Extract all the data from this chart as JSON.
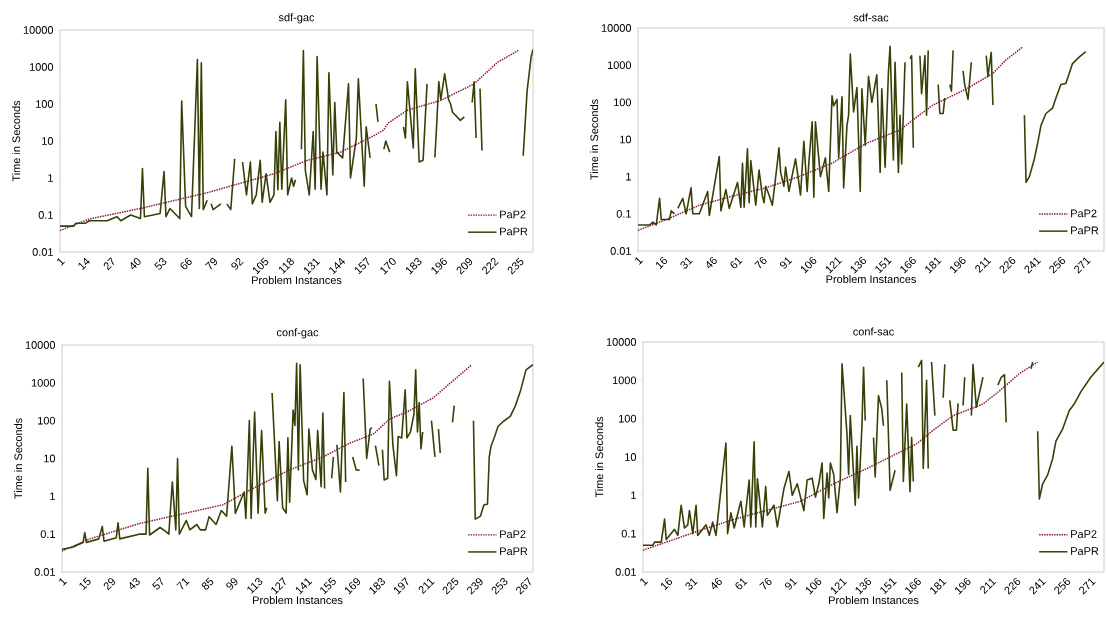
{
  "chart_data": [
    {
      "type": "line",
      "title": "sdf-gac",
      "xlabel": "Problem Instances",
      "ylabel": "Time in Seconds",
      "log": "y",
      "legend": "bottom right",
      "xlim": [
        1,
        242
      ],
      "xticks": [
        1,
        14,
        27,
        40,
        53,
        66,
        79,
        92,
        105,
        118,
        131,
        144,
        157,
        170,
        183,
        196,
        209,
        222,
        235
      ],
      "ylim": [
        0.01,
        10000
      ],
      "yticks": [
        0.01,
        0.1,
        1,
        10,
        100,
        1000,
        10000
      ],
      "series": [
        {
          "name": "PaP2",
          "color": "#8b1a3c",
          "line_style": "dotted",
          "x": [
            1,
            16,
            42,
            76,
            110,
            127,
            144,
            161,
            166,
            168,
            178,
            195,
            212,
            224,
            235
          ],
          "values": [
            0.038,
            0.078,
            0.15,
            0.4,
            1.3,
            3,
            5,
            14,
            20,
            30,
            68,
            125,
            350,
            1350,
            2900
          ]
        },
        {
          "name": "PaPR",
          "color": "#384008",
          "line_style": "solid",
          "x": [
            1,
            8,
            9,
            14,
            16,
            25,
            30,
            32,
            37,
            42,
            43,
            44,
            52,
            54,
            55,
            57,
            62,
            63,
            65,
            68,
            71,
            72,
            73,
            74,
            76,
            77,
            78,
            79,
            83,
            85,
            86,
            88,
            90,
            92,
            94,
            96,
            98,
            99,
            101,
            103,
            104,
            106,
            108,
            110,
            111,
            112,
            113,
            114,
            116,
            117,
            119,
            120,
            121,
            122,
            124,
            125,
            126,
            128,
            130,
            131,
            132,
            134,
            135,
            137,
            138,
            140,
            141,
            142,
            145,
            148,
            149,
            152,
            153,
            156,
            157,
            159,
            160,
            162,
            163,
            164,
            166,
            167,
            169,
            172,
            176,
            177,
            178,
            181,
            182,
            184,
            186,
            188,
            190,
            192,
            193,
            194,
            195,
            197,
            199,
            200,
            201,
            205,
            207,
            209,
            211,
            212,
            213,
            214,
            215,
            216,
            220,
            237,
            239,
            241,
            242
          ],
          "values": [
            0.05,
            0.05,
            0.06,
            0.06,
            0.07,
            0.07,
            0.09,
            0.07,
            0.1,
            0.08,
            1.8,
            0.09,
            0.11,
            1.5,
            0.09,
            0.15,
            0.08,
            120,
            0.17,
            0.09,
            1600,
            0.15,
            1300,
            0.14,
            0.25,
            null,
            0.2,
            0.14,
            0.2,
            null,
            0.2,
            0.14,
            3.3,
            null,
            2.7,
            0.35,
            2.7,
            0.2,
            0.35,
            3,
            0.22,
            1.3,
            0.22,
            0.35,
            18,
            0.48,
            32,
            0.5,
            130,
            0.35,
            1,
            0.6,
            0.9,
            null,
            6,
            2800,
            1.6,
            0.35,
            18,
            0.5,
            1900,
            0.5,
            5,
            0.35,
            700,
            1.2,
            110,
            5,
            3.5,
            350,
            1,
            12,
            480,
            0.6,
            24,
            3.5,
            null,
            100,
            33,
            null,
            6,
            10,
            5,
            null,
            24,
            12,
            400,
            6.5,
            900,
            2.7,
            3,
            350,
            null,
            3.6,
            33,
            400,
            130,
            650,
            130,
            100,
            60,
            36,
            45,
            null,
            110,
            400,
            12,
            null,
            260,
            5.5,
            null,
            4,
            230,
            1800,
            3000
          ]
        }
      ]
    },
    {
      "type": "line",
      "title": "sdf-sac",
      "xlabel": "Problem Instances",
      "ylabel": "Time in Seconds",
      "log": "y",
      "legend": "bottom right",
      "xlim": [
        1,
        282
      ],
      "xticks": [
        1,
        16,
        31,
        46,
        61,
        76,
        91,
        106,
        121,
        136,
        151,
        166,
        181,
        196,
        211,
        226,
        241,
        256,
        271
      ],
      "ylim": [
        0.01,
        10000
      ],
      "yticks": [
        0.01,
        0.1,
        1,
        10,
        100,
        1000,
        10000
      ],
      "series": [
        {
          "name": "PaP2",
          "color": "#8b1a3c",
          "line_style": "dotted",
          "x": [
            1,
            18,
            38,
            58,
            78,
            98,
            118,
            139,
            159,
            169,
            179,
            199,
            215,
            223,
            233
          ],
          "values": [
            0.036,
            0.07,
            0.17,
            0.3,
            0.5,
            1,
            2.3,
            8,
            18,
            40,
            85,
            230,
            600,
            1400,
            3100
          ]
        },
        {
          "name": "PaPR",
          "color": "#384008",
          "line_style": "solid",
          "x": [
            1,
            8,
            10,
            12,
            14,
            15,
            20,
            21,
            23,
            24,
            25,
            28,
            30,
            33,
            34,
            38,
            43,
            44,
            50,
            51,
            54,
            56,
            61,
            63,
            64,
            65,
            67,
            68,
            69,
            72,
            74,
            76,
            77,
            78,
            80,
            82,
            85,
            86,
            87,
            89,
            90,
            92,
            96,
            99,
            101,
            103,
            104,
            106,
            107,
            108,
            111,
            114,
            116,
            118,
            119,
            121,
            122,
            124,
            125,
            127,
            128,
            129,
            131,
            133,
            135,
            136,
            138,
            140,
            142,
            145,
            147,
            148,
            150,
            152,
            153,
            155,
            156,
            158,
            159,
            160,
            162,
            163,
            165,
            166,
            167,
            168,
            171,
            172,
            174,
            175,
            176,
            177,
            182,
            183,
            185,
            186,
            187,
            189,
            190,
            191,
            192,
            197,
            198,
            200,
            202,
            203,
            211,
            212,
            214,
            215,
            216,
            234,
            235,
            237,
            240,
            242,
            244,
            247,
            251,
            253,
            256,
            259,
            263,
            267,
            271
          ],
          "values": [
            0.05,
            0.05,
            0.06,
            0.05,
            0.26,
            0.07,
            0.07,
            0.12,
            0.1,
            null,
            0.14,
            0.26,
            0.1,
            0.5,
            0.1,
            0.1,
            0.4,
            0.09,
            3.5,
            0.12,
            0.45,
            0.14,
            0.7,
            0.15,
            2.3,
            0.15,
            5.6,
            0.2,
            2.7,
            0.17,
            1.5,
            0.3,
            0.2,
            0.55,
            0.32,
            0.17,
            2.3,
            6,
            1.3,
            0.55,
            1.8,
            0.4,
            3,
            0.32,
            9,
            0.4,
            2.3,
            30,
            0.28,
            30,
            1,
            3.2,
            0.4,
            150,
            80,
            120,
            3.2,
            140,
            0.5,
            24,
            45,
            2000,
            55,
            250,
            0.4,
            230,
            7,
            500,
            100,
            550,
            1.3,
            230,
            1.8,
            650,
            3200,
            2.8,
            1200,
            1.3,
            45,
            2.2,
            1200,
            null,
            1500,
            1800,
            6,
            null,
            1800,
            170,
            1800,
            45,
            2500,
            null,
            300,
            50,
            50,
            130,
            null,
            300,
            200,
            2500,
            null,
            700,
            300,
            120,
            1200,
            null,
            1800,
            500,
            2200,
            85,
            null,
            45,
            0.7,
            1,
            3,
            8,
            24,
            50,
            70,
            130,
            300,
            320,
            1100,
            1650,
            2300
          ]
        }
      ]
    },
    {
      "type": "line",
      "title": "conf-gac",
      "xlabel": "Problem Instances",
      "ylabel": "Time in Seconds",
      "log": "y",
      "legend": "bottom right",
      "xlim": [
        1,
        270
      ],
      "xticks": [
        1,
        15,
        29,
        43,
        57,
        71,
        85,
        99,
        113,
        127,
        141,
        155,
        169,
        183,
        197,
        211,
        225,
        239,
        253,
        267
      ],
      "ylim": [
        0.01,
        10000
      ],
      "yticks": [
        0.01,
        0.1,
        1,
        10,
        100,
        1000,
        10000
      ],
      "series": [
        {
          "name": "PaP2",
          "color": "#8b1a3c",
          "line_style": "dotted",
          "x": [
            1,
            17,
            45,
            74,
            93,
            112,
            131,
            150,
            165,
            179,
            188,
            198,
            213,
            224,
            235
          ],
          "values": [
            0.036,
            0.075,
            0.19,
            0.38,
            0.6,
            1.8,
            5,
            11,
            25,
            45,
            110,
            170,
            400,
            1100,
            3000
          ]
        },
        {
          "name": "PaPR",
          "color": "#384008",
          "line_style": "solid",
          "x": [
            1,
            7,
            13,
            14,
            15,
            22,
            24,
            25,
            32,
            33,
            34,
            45,
            49,
            50,
            51,
            57,
            60,
            62,
            64,
            66,
            67,
            68,
            72,
            74,
            78,
            80,
            83,
            85,
            89,
            92,
            95,
            98,
            100,
            102,
            105,
            106,
            108,
            109,
            111,
            113,
            115,
            117,
            118,
            119,
            121,
            124,
            125,
            127,
            129,
            130,
            131,
            133,
            134,
            135,
            136,
            137,
            139,
            141,
            142,
            144,
            146,
            147,
            149,
            150,
            151,
            153,
            155,
            156,
            157,
            158,
            160,
            162,
            163,
            165,
            167,
            169,
            171,
            172,
            173,
            175,
            177,
            178,
            179,
            180,
            182,
            183,
            184,
            185,
            187,
            188,
            190,
            192,
            193,
            195,
            197,
            198,
            200,
            202,
            203,
            204,
            205,
            206,
            207,
            209,
            212,
            214,
            215,
            216,
            217,
            220,
            224,
            225,
            230,
            236,
            237,
            240,
            242,
            244,
            245,
            246,
            248,
            250,
            253,
            257,
            260,
            263,
            266,
            270
          ],
          "values": [
            0.04,
            0.045,
            0.06,
            0.11,
            0.06,
            0.075,
            0.16,
            0.065,
            0.08,
            0.2,
            0.075,
            0.1,
            0.1,
            5.5,
            0.095,
            0.15,
            0.12,
            0.1,
            2.4,
            0.13,
            10,
            0.1,
            0.23,
            0.13,
            0.18,
            0.13,
            0.13,
            0.29,
            0.18,
            0.42,
            0.3,
            21,
            0.35,
            0.6,
            1.3,
            0.26,
            100,
            0.26,
            170,
            0.36,
            55,
            0.36,
            0.5,
            null,
            540,
            0.76,
            28,
            0.5,
            0.36,
            35,
            0.7,
            190,
            75,
            3300,
            5,
            3000,
            2.6,
            1.1,
            60,
            5,
            2.8,
            55,
            1.8,
            160,
            1.6,
            null,
            3,
            11,
            null,
            23,
            1.3,
            550,
            2.4,
            null,
            11,
            5,
            4.9,
            null,
            1300,
            10,
            60,
            65,
            null,
            22,
            6.5,
            null,
            17,
            2.7,
            3,
            1100,
            22,
            3.5,
            38,
            35,
            650,
            35,
            50,
            150,
            2200,
            50,
            300,
            18,
            50,
            null,
            100,
            11,
            null,
            60,
            14,
            null,
            90,
            250,
            null,
            100,
            0.25,
            0.3,
            0.6,
            0.62,
            11,
            21,
            37,
            70,
            95,
            130,
            250,
            650,
            2200,
            3000
          ]
        }
      ]
    },
    {
      "type": "line",
      "title": "conf-sac",
      "xlabel": "Problem Instances",
      "ylabel": "Time in Seconds",
      "log": "y",
      "legend": "bottom right",
      "xlim": [
        1,
        279
      ],
      "xticks": [
        1,
        16,
        31,
        46,
        61,
        76,
        91,
        106,
        121,
        136,
        151,
        166,
        181,
        196,
        211,
        226,
        241,
        256,
        271
      ],
      "ylim": [
        0.01,
        10000
      ],
      "yticks": [
        0.01,
        0.1,
        1,
        10,
        100,
        1000,
        10000
      ],
      "series": [
        {
          "name": "PaP2",
          "color": "#8b1a3c",
          "line_style": "dotted",
          "x": [
            1,
            15,
            35,
            55,
            75,
            96,
            116,
            136,
            150,
            166,
            176,
            188,
            206,
            216,
            228,
            239
          ],
          "values": [
            0.037,
            0.06,
            0.12,
            0.23,
            0.4,
            0.7,
            2,
            5,
            10,
            22,
            50,
            120,
            240,
            530,
            1500,
            3000
          ]
        },
        {
          "name": "PaPR",
          "color": "#384008",
          "line_style": "solid",
          "x": [
            1,
            7,
            8,
            12,
            14,
            15,
            20,
            22,
            24,
            26,
            28,
            29,
            31,
            33,
            34,
            39,
            41,
            43,
            45,
            51,
            52,
            54,
            56,
            60,
            62,
            65,
            66,
            68,
            69,
            70,
            73,
            75,
            76,
            80,
            82,
            86,
            89,
            91,
            94,
            98,
            100,
            103,
            105,
            107,
            109,
            110,
            112,
            113,
            114,
            116,
            118,
            120,
            121,
            124,
            125,
            126,
            129,
            130,
            131,
            133,
            134,
            135,
            137,
            140,
            141,
            143,
            145,
            146,
            147,
            148,
            150,
            153,
            155,
            157,
            158,
            160,
            162,
            163,
            164,
            165,
            167,
            169,
            170,
            172,
            173,
            174,
            175,
            177,
            178,
            182,
            183,
            184,
            186,
            188,
            190,
            191,
            192,
            194,
            195,
            196,
            199,
            200,
            202,
            206,
            207,
            215,
            217,
            219,
            220,
            221,
            235,
            236,
            237,
            239,
            240,
            242,
            245,
            248,
            250,
            254,
            258,
            261,
            265,
            271,
            279
          ],
          "values": [
            0.05,
            0.05,
            0.06,
            0.06,
            0.24,
            0.07,
            0.13,
            0.09,
            0.55,
            0.14,
            0.17,
            0.4,
            0.1,
            0.55,
            0.09,
            0.17,
            0.09,
            0.2,
            0.09,
            23,
            0.1,
            0.35,
            0.14,
            0.7,
            0.15,
            2.5,
            0.15,
            25,
            0.15,
            2.7,
            0.15,
            1.7,
            0.3,
            0.55,
            0.15,
            1.5,
            4.2,
            1,
            2,
            0.4,
            2.5,
            2.8,
            0.9,
            2,
            7,
            0.25,
            3.8,
            0.85,
            7,
            3.5,
            0.35,
            2.8,
            2700,
            40,
            3.5,
            120,
            0.55,
            19,
            0.85,
            60,
            2200,
            90,
            null,
            32,
            3,
            400,
            180,
            65,
            null,
            1000,
            1.35,
            4.5,
            null,
            1600,
            2.3,
            240,
            1.25,
            32,
            2.3,
            null,
            2200,
            3300,
            5,
            1000,
            5,
            null,
            3000,
            120,
            null,
            350,
            2600,
            null,
            300,
            50,
            50,
            250,
            null,
            220,
            1200,
            null,
            120,
            2600,
            200,
            1200,
            null,
            750,
            1200,
            1400,
            80,
            null,
            2000,
            3000,
            null,
            47,
            0.8,
            2,
            3.4,
            9,
            26,
            53,
            160,
            240,
            500,
            1200,
            3000
          ]
        }
      ]
    }
  ]
}
